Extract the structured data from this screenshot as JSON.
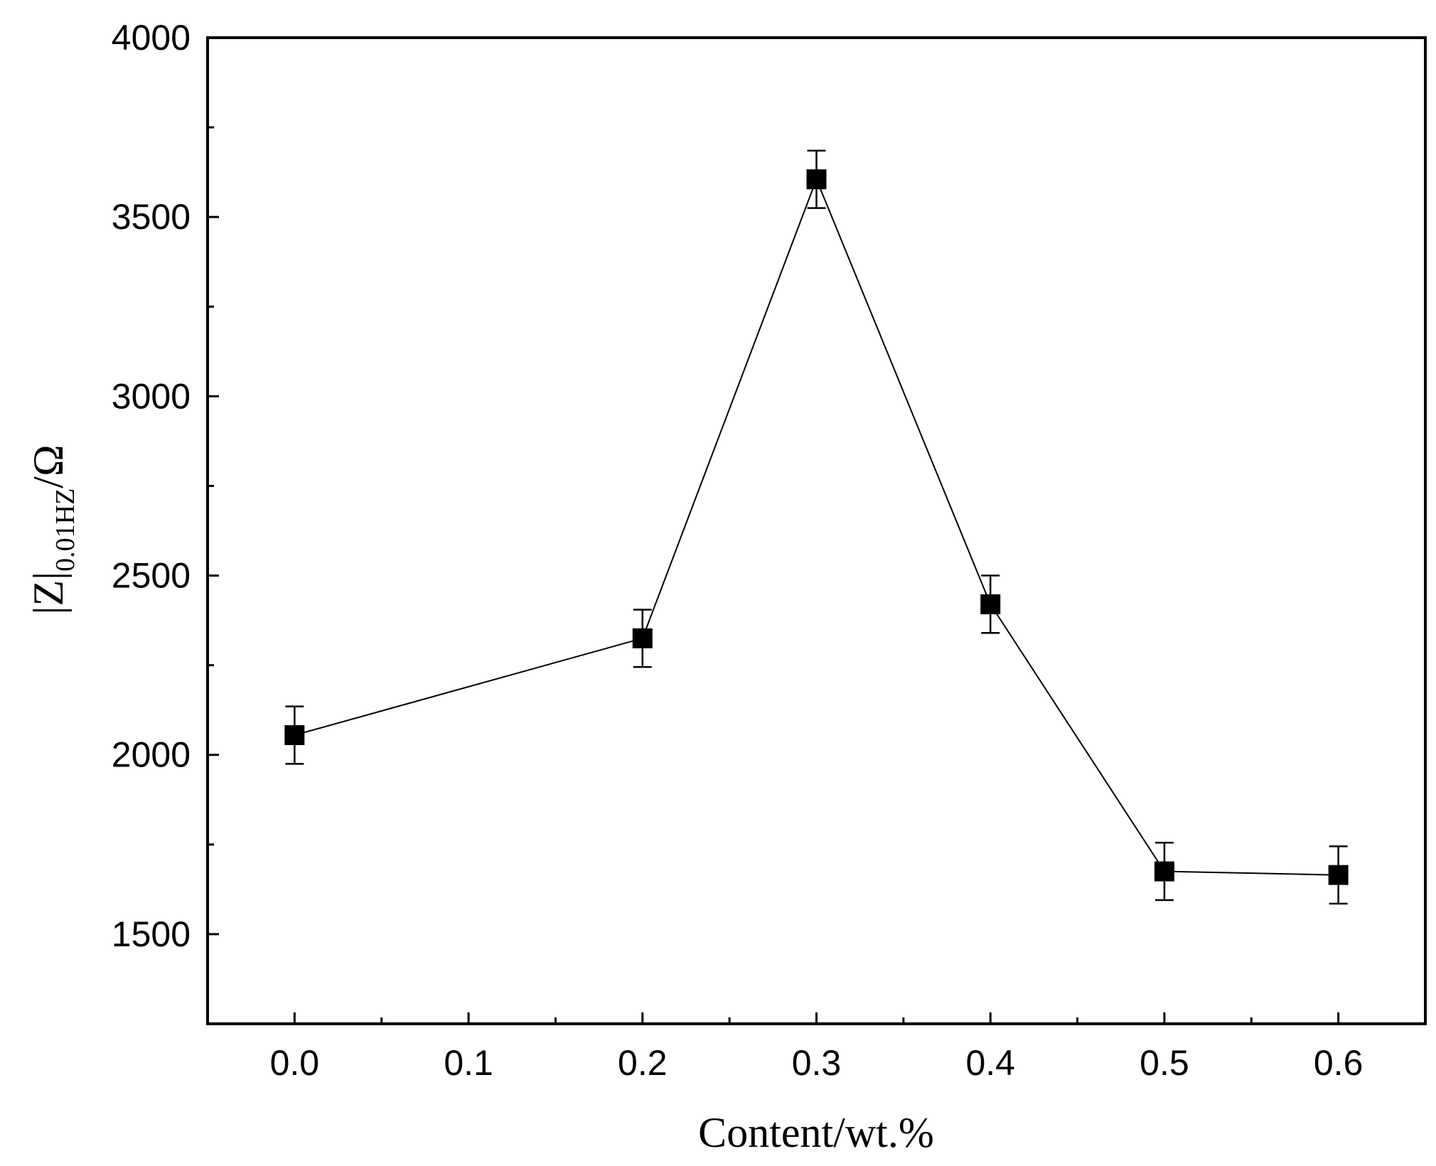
{
  "chart_data": {
    "type": "line",
    "x": [
      0.0,
      0.2,
      0.3,
      0.4,
      0.5,
      0.6
    ],
    "series": [
      {
        "values": [
          2055,
          2325,
          3605,
          2420,
          1675,
          1665
        ],
        "error": [
          80,
          80,
          80,
          80,
          80,
          80
        ],
        "marker": "square"
      }
    ],
    "xlim": [
      -0.05,
      0.65
    ],
    "ylim": [
      1250,
      4000
    ],
    "xticks": [
      "0.0",
      "0.1",
      "0.2",
      "0.3",
      "0.4",
      "0.5",
      "0.6"
    ],
    "yticks": [
      "1500",
      "2000",
      "2500",
      "3000",
      "3500",
      "4000"
    ],
    "xlabel": "Content/wt.%",
    "ylabel": {
      "main": "|Z|",
      "subscript": "0.01HZ",
      "unit": "/Ω"
    },
    "title": "",
    "grid": false,
    "colors": {
      "line": "#000000",
      "marker": "#000000",
      "background": "#ffffff"
    }
  }
}
